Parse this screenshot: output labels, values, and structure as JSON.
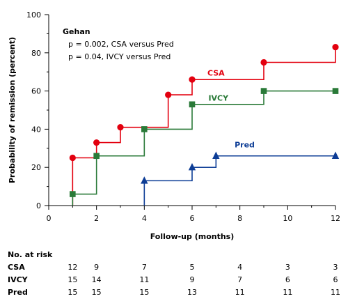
{
  "chart_data": {
    "type": "line",
    "step": true,
    "xlabel": "Follow-up (months)",
    "ylabel": "Probability of remission (percent)",
    "xlim": [
      0,
      12
    ],
    "ylim": [
      0,
      100
    ],
    "xticks": [
      0,
      2,
      4,
      6,
      8,
      10,
      12
    ],
    "yticks": [
      0,
      20,
      40,
      60,
      80,
      100
    ],
    "grid": false,
    "annotation": {
      "heading": "Gehan",
      "lines": [
        "p = 0.002, CSA versus Pred",
        "p = 0.04, IVCY versus Pred"
      ]
    },
    "series": [
      {
        "name": "CSA",
        "color": "#e3000f",
        "marker": "circle",
        "x": [
          1,
          2,
          3,
          5,
          6,
          9,
          12
        ],
        "y": [
          25,
          33,
          41,
          58,
          66,
          75,
          83
        ]
      },
      {
        "name": "IVCY",
        "color": "#2a7a38",
        "marker": "square",
        "x": [
          1,
          2,
          4,
          6,
          9,
          12
        ],
        "y": [
          6,
          26,
          40,
          53,
          60,
          60
        ]
      },
      {
        "name": "Pred",
        "color": "#0d3d96",
        "marker": "triangle",
        "x": [
          4,
          6,
          7,
          12
        ],
        "y": [
          13,
          20,
          26,
          26
        ]
      }
    ],
    "at_risk": {
      "title": "No. at risk",
      "x": [
        1,
        2,
        4,
        6,
        8,
        10,
        12
      ],
      "rows": [
        {
          "label": "CSA",
          "values": [
            12,
            9,
            7,
            5,
            4,
            3,
            3
          ]
        },
        {
          "label": "IVCY",
          "values": [
            15,
            14,
            11,
            9,
            7,
            6,
            6
          ]
        },
        {
          "label": "Pred",
          "values": [
            15,
            15,
            15,
            13,
            11,
            11,
            11
          ]
        }
      ]
    }
  }
}
